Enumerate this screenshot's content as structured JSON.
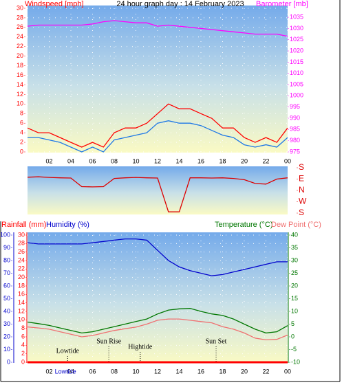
{
  "chart_data": [
    {
      "type": "line",
      "title": "24 hour graph day : 14 February 2023",
      "ylabel": "Windspeed [mph]",
      "y2label": "Barometer [mb]",
      "x": [
        0,
        1,
        2,
        3,
        4,
        5,
        6,
        7,
        8,
        9,
        10,
        11,
        12,
        13,
        14,
        15,
        16,
        17,
        18,
        19,
        20,
        21,
        22,
        23,
        24
      ],
      "xlim": [
        0,
        24
      ],
      "xticks": [
        {
          "value": 2,
          "label": "02"
        },
        {
          "value": 4,
          "label": "04"
        },
        {
          "value": 6,
          "label": "06"
        },
        {
          "value": 8,
          "label": "08"
        },
        10,
        12,
        14,
        16,
        18,
        20,
        22,
        {
          "value": 24,
          "label": "00"
        }
      ],
      "ylim": [
        0,
        30
      ],
      "yticks": [
        0,
        2,
        4,
        6,
        8,
        10,
        12,
        14,
        16,
        18,
        20,
        22,
        24,
        26,
        28,
        30
      ],
      "y2lim": [
        975,
        1039
      ],
      "y2ticks": [
        975,
        980,
        985,
        990,
        995,
        1000,
        1005,
        1010,
        1015,
        1020,
        1025,
        1030,
        1035
      ],
      "grid": true,
      "series": [
        {
          "color": "#ff0000",
          "values": [
            5,
            4,
            4,
            3,
            2,
            1,
            2,
            1,
            4,
            5,
            5,
            6,
            8,
            10,
            9,
            9,
            8,
            7,
            5,
            5,
            3,
            2,
            3,
            2,
            5
          ]
        },
        {
          "color": "#1e78e6",
          "values": [
            3,
            3,
            2.5,
            2,
            1,
            0,
            1,
            0,
            2.5,
            3,
            3.5,
            4,
            6,
            6.5,
            6,
            6,
            5.5,
            4.5,
            3.5,
            3,
            1.5,
            1,
            1.5,
            1,
            3
          ]
        },
        {
          "color": "#ff00ff",
          "axis": "y2",
          "values": [
            1031,
            1031.5,
            1031.5,
            1031.5,
            1031.5,
            1031.5,
            1032,
            1033,
            1033.5,
            1033,
            1032.5,
            1032.5,
            1031,
            1031.5,
            1031,
            1030.5,
            1030,
            1029.5,
            1029,
            1028.5,
            1028,
            1027.5,
            1027.5,
            1027.5,
            1026.5
          ]
        }
      ]
    },
    {
      "type": "line",
      "x": [
        0,
        1,
        2,
        3,
        4,
        5,
        6,
        7,
        8,
        9,
        10,
        11,
        12,
        13,
        14,
        15,
        16,
        17,
        18,
        19,
        20,
        21,
        22,
        23,
        24
      ],
      "xlim": [
        0,
        24
      ],
      "ylim": [
        -180,
        180
      ],
      "yticks": [
        {
          "value": 180,
          "label": "S"
        },
        {
          "value": 90,
          "label": "E"
        },
        {
          "value": 0,
          "label": "N"
        },
        {
          "value": -90,
          "label": "W"
        },
        {
          "value": -180,
          "label": "S"
        }
      ],
      "series": [
        {
          "color": "#dd0000",
          "values": [
            105,
            108,
            103,
            100,
            98,
            30,
            28,
            30,
            95,
            100,
            103,
            100,
            98,
            -170,
            -170,
            100,
            100,
            98,
            100,
            95,
            85,
            55,
            50,
            90,
            100
          ]
        }
      ]
    },
    {
      "type": "line",
      "ylabel": "Rainfall (mm)",
      "y2label": "Humidity (%)",
      "y3label": "Temperature (°C)",
      "y4label": "Dew Point (°C)",
      "x": [
        0,
        1,
        2,
        3,
        4,
        5,
        6,
        7,
        8,
        9,
        10,
        11,
        12,
        13,
        14,
        15,
        16,
        17,
        18,
        19,
        20,
        21,
        22,
        23,
        24
      ],
      "xlim": [
        0,
        24
      ],
      "xticks": [
        {
          "value": 2,
          "label": "02"
        },
        {
          "value": 4,
          "label": "04"
        },
        {
          "value": 6,
          "label": "06"
        },
        {
          "value": 8,
          "label": "08"
        },
        10,
        12,
        14,
        16,
        18,
        20,
        22,
        {
          "value": 24,
          "label": "00"
        }
      ],
      "ylim": [
        0,
        30
      ],
      "yticks": [
        0,
        2,
        4,
        6,
        8,
        10,
        12,
        14,
        16,
        18,
        20,
        22,
        24,
        26,
        28,
        30
      ],
      "y2lim": [
        0,
        100
      ],
      "y2ticks": [
        0,
        10,
        20,
        30,
        40,
        50,
        60,
        70,
        80,
        90,
        100
      ],
      "y3lim": [
        -10,
        40
      ],
      "y3ticks": [
        -10,
        -5,
        0,
        5,
        10,
        15,
        20,
        25,
        30,
        35,
        40
      ],
      "grid": true,
      "annotations": [
        {
          "text": "Lowtide",
          "x": 3.7
        },
        {
          "text": "Sun Rise",
          "x": 7.5
        },
        {
          "text": "Hightide",
          "x": 10.4
        },
        {
          "text": "Sun Set",
          "x": 17.4
        }
      ],
      "x_marker": {
        "text": "Lowtide",
        "x": 3.5
      },
      "series": [
        {
          "color": "#ff0000",
          "values": [
            0,
            0,
            0,
            0,
            0,
            0,
            0,
            0,
            0,
            0,
            0,
            0,
            0,
            0,
            0,
            0,
            0,
            0,
            0,
            0,
            0,
            0,
            0,
            0,
            0
          ]
        },
        {
          "color": "#0000cc",
          "axis": "y2",
          "values": [
            94,
            93,
            93,
            93,
            93,
            93,
            94,
            95,
            96,
            97,
            97,
            96,
            88,
            80,
            75,
            72,
            70,
            68,
            69,
            71,
            73,
            75,
            77,
            79,
            79
          ]
        },
        {
          "color": "#007700",
          "axis": "y3",
          "values": [
            5.8,
            5.2,
            4.5,
            3.5,
            2.5,
            1.5,
            2,
            3,
            4,
            5,
            6,
            7,
            9,
            10.5,
            11,
            11.2,
            10,
            9,
            8.4,
            7,
            5,
            3,
            1.5,
            2,
            4.4
          ]
        },
        {
          "color": "#f07070",
          "axis": "y3",
          "values": [
            3.9,
            3.5,
            3,
            2,
            1,
            0,
            0.5,
            1.5,
            2.5,
            3.2,
            3.8,
            5,
            6.5,
            7,
            7,
            6.5,
            6,
            5.5,
            4,
            3,
            1.5,
            -0.5,
            -1.2,
            -1,
            0.7
          ]
        }
      ]
    }
  ]
}
